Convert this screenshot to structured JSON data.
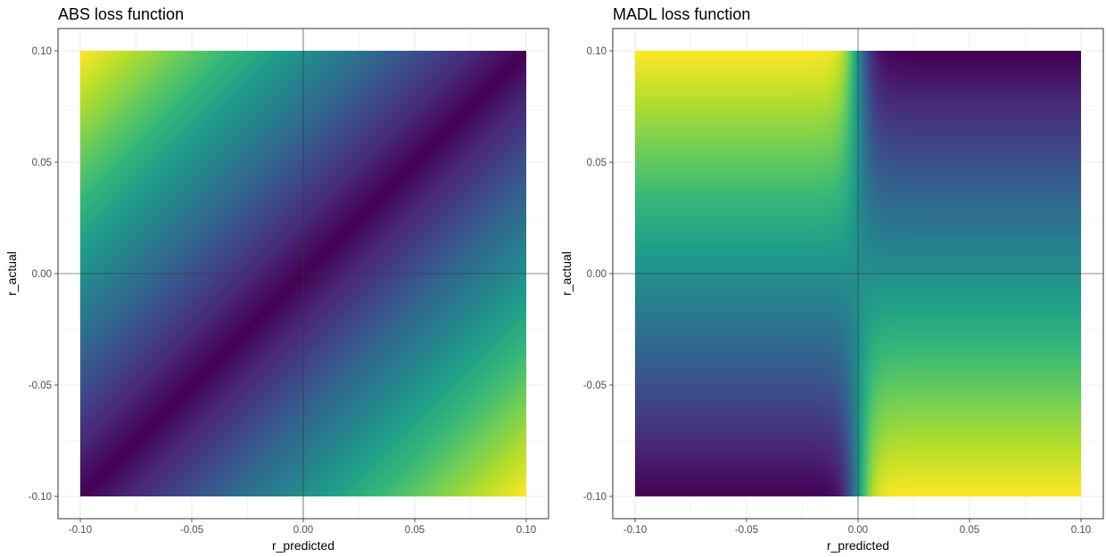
{
  "chart_data": [
    {
      "type": "heatmap",
      "title": "ABS loss function",
      "xlabel": "r_predicted",
      "ylabel": "r_actual",
      "xlim": [
        -0.1,
        0.1
      ],
      "ylim": [
        -0.1,
        0.1
      ],
      "x_ticks": [
        -0.1,
        -0.05,
        0.0,
        0.05,
        0.1
      ],
      "y_ticks": [
        -0.1,
        -0.05,
        0.0,
        0.05,
        0.1
      ],
      "x_tick_labels": [
        "-0.10",
        "-0.05",
        "0.00",
        "0.05",
        "0.10"
      ],
      "y_tick_labels": [
        "-0.10",
        "-0.05",
        "0.00",
        "0.05",
        "0.10"
      ],
      "reference_lines": {
        "x": 0,
        "y": 0
      },
      "grid": true,
      "legend": "none",
      "colormap": "viridis",
      "function": "abs(r_actual - r_predicted)"
    },
    {
      "type": "heatmap",
      "title": "MADL loss function",
      "xlabel": "r_predicted",
      "ylabel": "r_actual",
      "xlim": [
        -0.1,
        0.1
      ],
      "ylim": [
        -0.1,
        0.1
      ],
      "x_ticks": [
        -0.1,
        -0.05,
        0.0,
        0.05,
        0.1
      ],
      "y_ticks": [
        -0.1,
        -0.05,
        0.0,
        0.05,
        0.1
      ],
      "x_tick_labels": [
        "-0.10",
        "-0.05",
        "0.00",
        "0.05",
        "0.10"
      ],
      "y_tick_labels": [
        "-0.10",
        "-0.05",
        "0.00",
        "0.05",
        "0.10"
      ],
      "reference_lines": {
        "x": 0,
        "y": 0
      },
      "grid": true,
      "legend": "none",
      "colormap": "viridis",
      "function": "-sign(r_actual * r_predicted) * abs(r_actual)"
    }
  ],
  "colors": {
    "viridis": [
      "#440154",
      "#482878",
      "#3e4989",
      "#31688e",
      "#26828e",
      "#1f9e89",
      "#35b779",
      "#6ece58",
      "#b5de2b",
      "#fde725"
    ],
    "reference_line": "#333333",
    "grid": "#ebebeb",
    "panel_border": "#333333",
    "tick_label": "#4d4d4d"
  }
}
